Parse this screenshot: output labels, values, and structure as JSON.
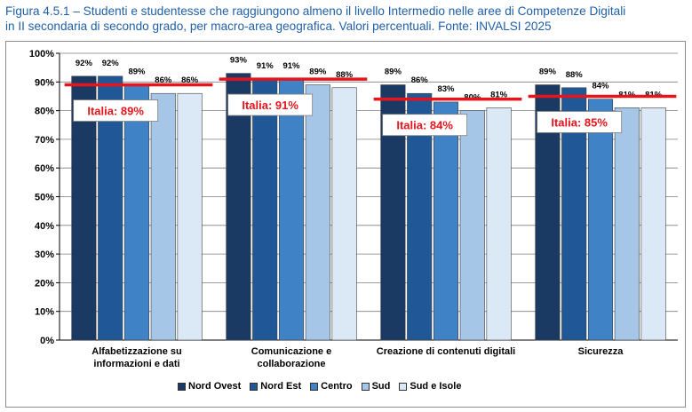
{
  "header": {
    "line1": "Figura 4.5.1 – Studenti e studentesse che raggiungono almeno il livello Intermedio nelle aree di Competenze Digitali",
    "line2": "in II secondaria di secondo grado, per macro-area geografica. Valori percentuali. Fonte: INVALSI 2025"
  },
  "chart_data": {
    "type": "bar",
    "ylim": [
      0,
      100
    ],
    "yticks": [
      "0%",
      "10%",
      "20%",
      "30%",
      "40%",
      "50%",
      "60%",
      "70%",
      "80%",
      "90%",
      "100%"
    ],
    "categories": [
      [
        "Alfabetizzazione su",
        "informazioni e dati"
      ],
      [
        "Comunicazione e",
        "collaborazione"
      ],
      [
        "Creazione di contenuti digitali"
      ],
      [
        "Sicurezza"
      ]
    ],
    "series": [
      {
        "name": "Nord Ovest",
        "color": "#1b3a63",
        "values": [
          92,
          93,
          89,
          89
        ],
        "labels": [
          "92%",
          "93%",
          "89%",
          "89%"
        ]
      },
      {
        "name": "Nord Est",
        "color": "#1f5797",
        "values": [
          92,
          91,
          86,
          88
        ],
        "labels": [
          "92%",
          "91%",
          "86%",
          "88%"
        ]
      },
      {
        "name": "Centro",
        "color": "#3f82c6",
        "values": [
          89,
          91,
          83,
          84
        ],
        "labels": [
          "89%",
          "91%",
          "83%",
          "84%"
        ]
      },
      {
        "name": "Sud",
        "color": "#a5c6e7",
        "values": [
          86,
          89,
          80,
          81
        ],
        "labels": [
          "86%",
          "89%",
          "80%",
          "81%"
        ]
      },
      {
        "name": "Sud e Isole",
        "color": "#dbe8f5",
        "values": [
          86,
          88,
          81,
          81
        ],
        "labels": [
          "86%",
          "88%",
          "81%",
          "81%"
        ]
      }
    ],
    "italia": {
      "color": "#e8141c",
      "values": [
        89,
        91,
        84,
        85
      ],
      "labels": [
        "Italia: 89%",
        "Italia: 91%",
        "Italia: 84%",
        "Italia: 85%"
      ]
    }
  }
}
